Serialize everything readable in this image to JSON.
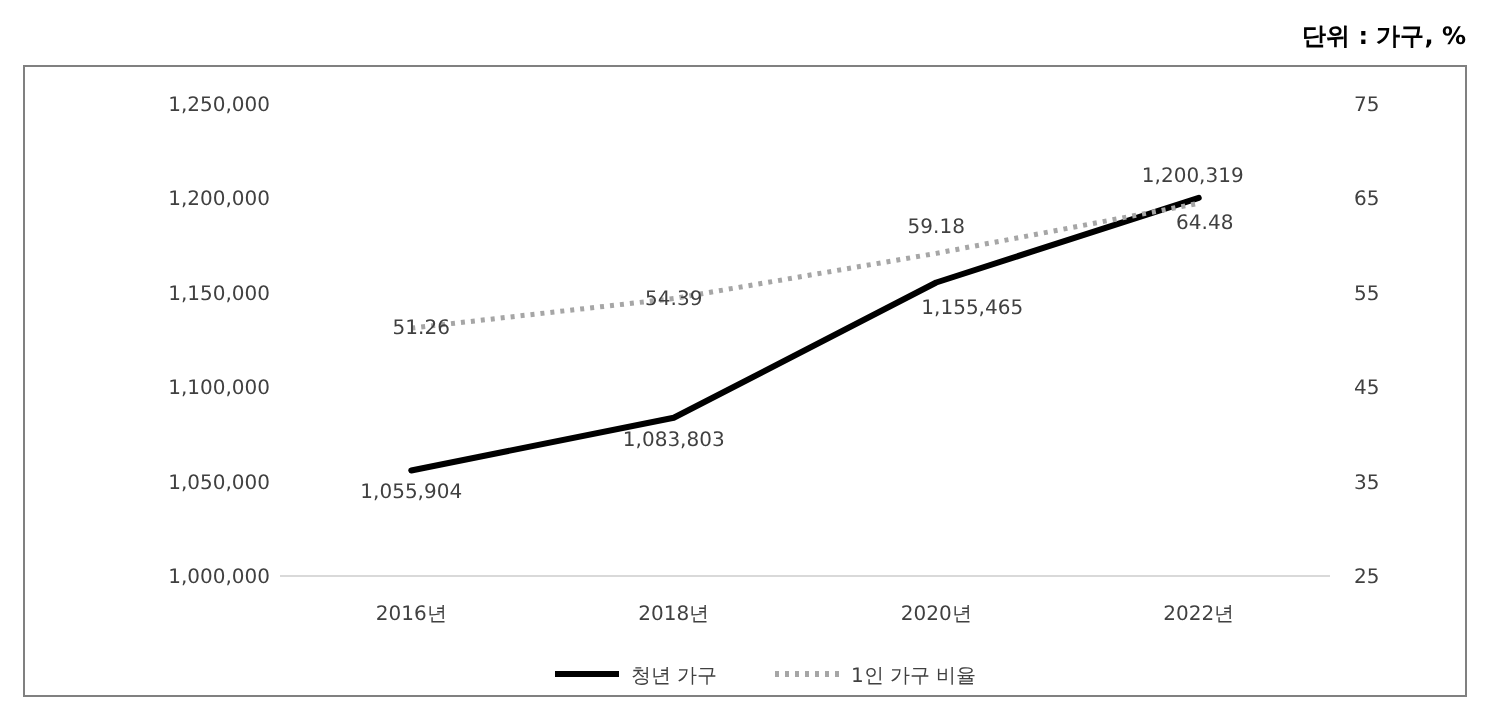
{
  "chart_data": {
    "type": "line",
    "subtitle": "단위 : 가구, %",
    "categories": [
      "2016년",
      "2018년",
      "2020년",
      "2022년"
    ],
    "series": [
      {
        "name": "청년 가구",
        "color": "#000000",
        "values": [
          1055904,
          1083803,
          1155465,
          1200319
        ],
        "line_style": "solid",
        "value_labels": [
          "1,055,904",
          "1,083,803",
          "1,155,465",
          "1,200,319"
        ]
      },
      {
        "name": "1인 가구 비율",
        "color": "#a6a6a6",
        "axis": "y2",
        "values": [
          51.26,
          54.39,
          59.18,
          64.48
        ],
        "line_style": "dotted",
        "value_labels": [
          "51.26",
          "54.39",
          "59.18",
          "64.48"
        ]
      }
    ],
    "ylim": [
      1000000,
      1250000
    ],
    "yticks": [
      {
        "value": 1000000,
        "label": "1,000,000"
      },
      {
        "value": 1050000,
        "label": "1,050,000"
      },
      {
        "value": 1100000,
        "label": "1,100,000"
      },
      {
        "value": 1150000,
        "label": "1,150,000"
      },
      {
        "value": 1200000,
        "label": "1,200,000"
      },
      {
        "value": 1250000,
        "label": "1,250,000"
      }
    ],
    "y2lim": [
      25,
      75
    ],
    "y2ticks": [
      25,
      35,
      45,
      55,
      65,
      75
    ],
    "legend": "bottom",
    "grid": false,
    "marker": "none"
  }
}
